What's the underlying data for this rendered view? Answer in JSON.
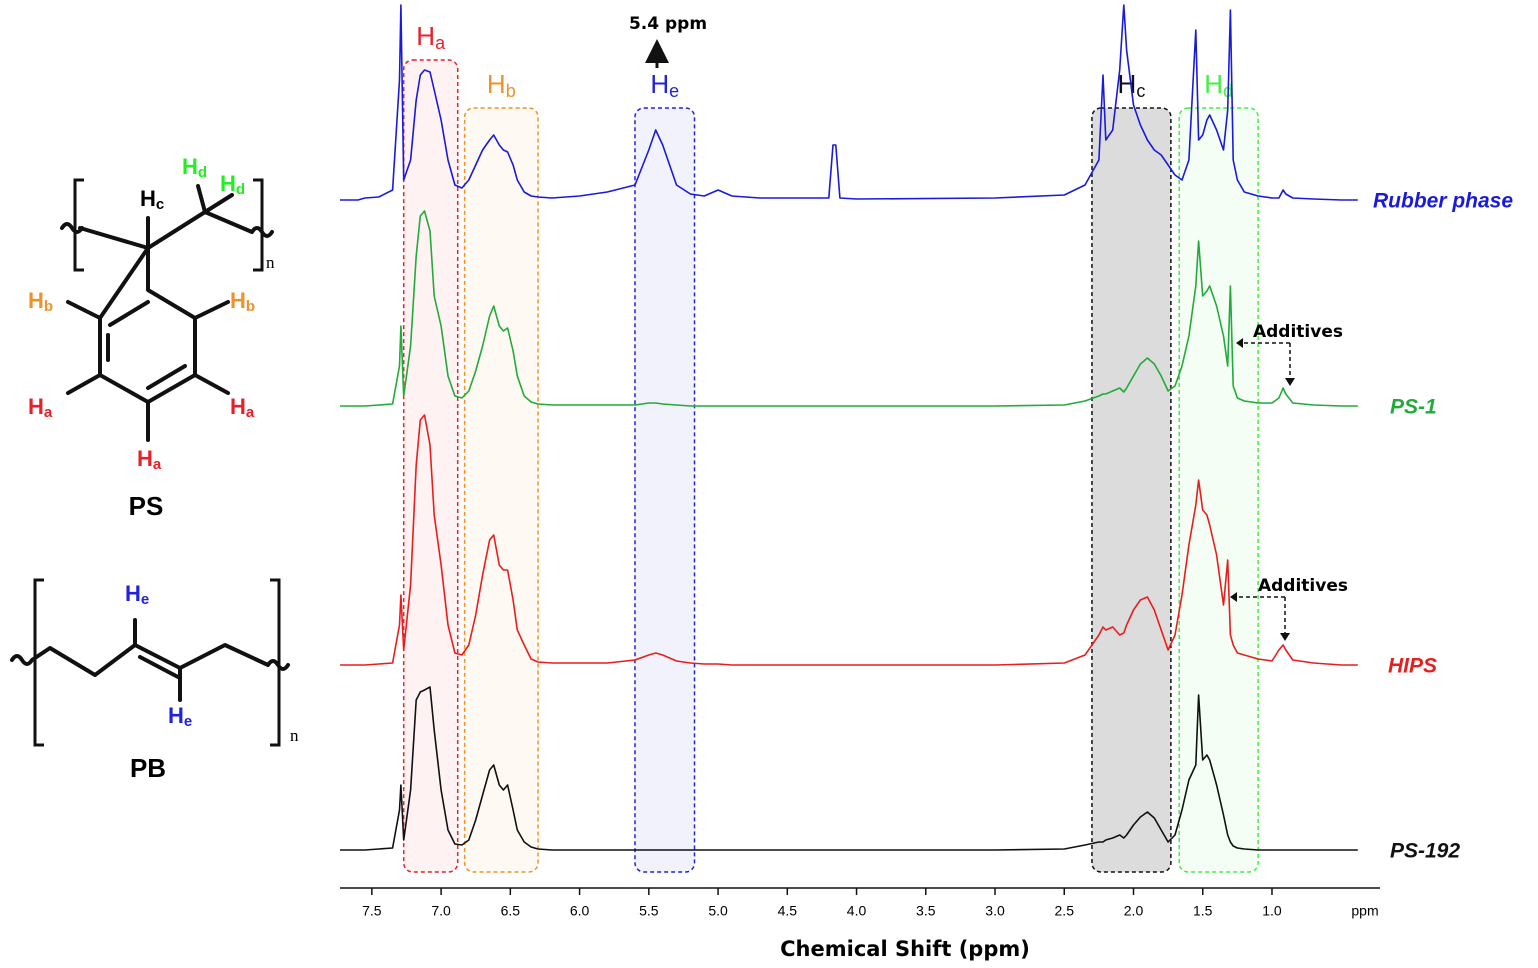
{
  "chart_data": {
    "type": "nmr-stack",
    "x_label": "Chemical Shift (ppm)",
    "x_unit": "ppm",
    "xlim": [
      7.73,
      0.22
    ],
    "xticks": [
      7.5,
      {
        "value": 7,
        "label": "7.0"
      },
      6.5,
      {
        "value": 6,
        "label": "6.0"
      },
      5.5,
      {
        "value": 5,
        "label": "5.0"
      },
      4.5,
      {
        "value": 4,
        "label": "4.0"
      },
      3.5,
      {
        "value": 3,
        "label": "3.0"
      },
      2.5,
      {
        "value": 2,
        "label": "2.0"
      },
      1.5,
      {
        "value": 1,
        "label": "1.0"
      }
    ],
    "x": [
      7.73,
      7.6,
      7.55,
      7.45,
      7.35,
      7.3,
      7.29,
      7.27,
      7.22,
      7.18,
      7.15,
      7.12,
      7.08,
      7.05,
      7.0,
      6.95,
      6.9,
      6.85,
      6.8,
      6.75,
      6.7,
      6.65,
      6.62,
      6.58,
      6.55,
      6.52,
      6.48,
      6.45,
      6.4,
      6.35,
      6.3,
      6.2,
      6.0,
      5.8,
      5.6,
      5.5,
      5.45,
      5.4,
      5.3,
      5.2,
      5.1,
      5.0,
      4.9,
      4.7,
      4.2,
      4.17,
      4.15,
      4.12,
      4.0,
      3.0,
      2.5,
      2.35,
      2.25,
      2.22,
      2.2,
      2.15,
      2.1,
      2.07,
      2.05,
      2.0,
      1.95,
      1.9,
      1.85,
      1.8,
      1.75,
      1.7,
      1.65,
      1.6,
      1.55,
      1.53,
      1.5,
      1.47,
      1.45,
      1.4,
      1.35,
      1.32,
      1.3,
      1.28,
      1.25,
      1.2,
      1.1,
      1.0,
      0.95,
      0.92,
      0.9,
      0.85,
      0.7,
      0.5,
      0.38
    ],
    "series": [
      {
        "name": "Rubber phase",
        "color": "#1a1adc",
        "values": [
          0,
          0,
          2,
          3,
          10,
          120,
          195,
          20,
          40,
          100,
          125,
          130,
          128,
          110,
          80,
          40,
          15,
          12,
          20,
          35,
          50,
          60,
          65,
          55,
          50,
          48,
          35,
          20,
          8,
          4,
          3,
          2,
          4,
          8,
          15,
          50,
          70,
          55,
          15,
          6,
          4,
          10,
          4,
          2,
          2,
          55,
          55,
          2,
          1,
          2,
          5,
          15,
          40,
          125,
          60,
          70,
          130,
          195,
          150,
          95,
          75,
          60,
          50,
          45,
          35,
          25,
          20,
          40,
          170,
          60,
          65,
          80,
          85,
          70,
          50,
          90,
          190,
          40,
          20,
          8,
          4,
          2,
          2,
          10,
          6,
          2,
          1,
          0,
          0
        ]
      },
      {
        "name": "PS-1",
        "color": "#22aa3a",
        "values": [
          0,
          0,
          0,
          1,
          2,
          40,
          80,
          10,
          60,
          150,
          190,
          195,
          175,
          110,
          80,
          30,
          10,
          8,
          15,
          35,
          60,
          90,
          100,
          80,
          75,
          78,
          55,
          30,
          10,
          4,
          2,
          1,
          1,
          1,
          1,
          3,
          3,
          2,
          1,
          0,
          0,
          0,
          0,
          0,
          0,
          0,
          0,
          0,
          0,
          0,
          1,
          5,
          10,
          12,
          12,
          15,
          18,
          14,
          18,
          30,
          42,
          48,
          42,
          30,
          15,
          20,
          40,
          70,
          120,
          165,
          110,
          115,
          120,
          100,
          70,
          40,
          120,
          20,
          8,
          5,
          3,
          3,
          8,
          18,
          12,
          3,
          1,
          0,
          0
        ]
      },
      {
        "name": "HIPS",
        "color": "#e81e1e",
        "values": [
          0,
          0,
          0,
          1,
          2,
          40,
          70,
          15,
          80,
          200,
          245,
          250,
          220,
          150,
          100,
          40,
          12,
          10,
          20,
          50,
          90,
          125,
          130,
          100,
          95,
          95,
          65,
          35,
          20,
          6,
          3,
          2,
          2,
          2,
          5,
          10,
          12,
          10,
          4,
          2,
          1,
          1,
          0,
          0,
          0,
          0,
          0,
          0,
          0,
          0,
          2,
          10,
          30,
          38,
          35,
          38,
          30,
          32,
          40,
          55,
          65,
          68,
          55,
          35,
          15,
          30,
          70,
          120,
          160,
          185,
          155,
          150,
          140,
          110,
          60,
          105,
          30,
          20,
          12,
          10,
          6,
          4,
          15,
          20,
          15,
          5,
          2,
          0,
          0
        ]
      },
      {
        "name": "PS-192",
        "color": "#111111",
        "values": [
          0,
          0,
          0,
          1,
          2,
          40,
          65,
          10,
          60,
          150,
          158,
          160,
          163,
          120,
          60,
          20,
          6,
          5,
          10,
          30,
          55,
          80,
          85,
          65,
          60,
          65,
          40,
          20,
          8,
          3,
          1,
          0,
          0,
          0,
          0,
          0,
          0,
          0,
          0,
          0,
          0,
          0,
          0,
          0,
          0,
          0,
          0,
          0,
          0,
          0,
          1,
          5,
          8,
          8,
          10,
          12,
          15,
          12,
          15,
          25,
          33,
          38,
          32,
          20,
          8,
          15,
          40,
          70,
          85,
          155,
          90,
          95,
          90,
          65,
          35,
          15,
          8,
          4,
          2,
          1,
          0,
          0,
          0,
          0,
          0,
          0,
          0,
          0,
          0
        ]
      }
    ],
    "regions": [
      {
        "label": [
          "H",
          "a"
        ],
        "from": 7.27,
        "to": 6.88,
        "color": "#e8202a"
      },
      {
        "label": [
          "H",
          "b"
        ],
        "from": 6.83,
        "to": 6.3,
        "color": "#f0922a"
      },
      {
        "label": [
          "H",
          "e"
        ],
        "from": 5.6,
        "to": 5.17,
        "color": "#2222dd"
      },
      {
        "label": [
          "H",
          "c"
        ],
        "from": 2.3,
        "to": 1.73,
        "color": "#111111"
      },
      {
        "label": [
          "H",
          "d"
        ],
        "from": 1.67,
        "to": 1.1,
        "color": "#44ee44"
      }
    ],
    "annotations": [
      "5.4 ppm",
      "Additives",
      "Additives"
    ]
  },
  "structures": [
    {
      "name": "PS",
      "labels": [
        [
          "H",
          "c"
        ],
        [
          "H",
          "d"
        ],
        [
          "H",
          "d"
        ],
        [
          "H",
          "b"
        ],
        [
          "H",
          "b"
        ],
        [
          "H",
          "a"
        ],
        [
          "H",
          "a"
        ],
        [
          "H",
          "a"
        ]
      ],
      "repeat": "n"
    },
    {
      "name": "PB",
      "labels": [
        [
          "H",
          "e"
        ],
        [
          "H",
          "e"
        ]
      ],
      "repeat": "n"
    }
  ]
}
